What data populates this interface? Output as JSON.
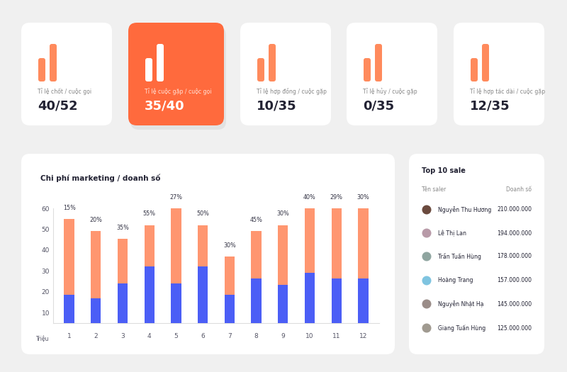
{
  "cards": [
    {
      "label": "Tỉ lệ chốt / cuộc gọi",
      "value": "40/52",
      "color": "#ffffff"
    },
    {
      "label": "Tỉ lệ cuộc gặp / cuộc gọi",
      "value": "35/40",
      "color": "#ff6a3d"
    },
    {
      "label": "Tỉ lệ hợp đồng / cuộc gặp",
      "value": "10/35",
      "color": "#ffffff"
    },
    {
      "label": "Tỉ lệ hủy / cuộc gặp",
      "value": "0/35",
      "color": "#ffffff"
    },
    {
      "label": "Tỉ lệ hợp tác dài / cuộc gặp",
      "value": "12/35",
      "color": "#ffffff"
    }
  ],
  "chart_data": {
    "type": "bar",
    "stacked": true,
    "title": "Chi phí marketing / doanh số",
    "y_label": "Triệu",
    "categories": [
      "1",
      "2",
      "3",
      "4",
      "5",
      "6",
      "7",
      "8",
      "9",
      "10",
      "11",
      "12"
    ],
    "series": [
      {
        "color": "#4b5ef6",
        "values": [
          18.5,
          17,
          24,
          32,
          24,
          32,
          18.5,
          26.5,
          23.5,
          29,
          26.5,
          26.5
        ]
      },
      {
        "color": "#ff9670",
        "values": [
          36.5,
          32,
          21.5,
          20,
          36,
          20,
          18.5,
          22.5,
          28.5,
          31,
          33.5,
          33.5
        ]
      }
    ],
    "annotations": [
      "15%",
      "20%",
      "35%",
      "55%",
      "27%",
      "50%",
      "30%",
      "45%",
      "30%",
      "40%",
      "29%",
      "30%"
    ],
    "ylim": [
      5,
      60
    ],
    "yticks": [
      10,
      20,
      30,
      40,
      50,
      60
    ],
    "grid": false
  },
  "top_sales": {
    "title": "Top 10 sale",
    "columns": [
      "Tên saler",
      "Doanh số"
    ],
    "rows": [
      [
        "Nguyễn Thu Hương",
        "210.000.000"
      ],
      [
        "Lê Thị Lan",
        "194.000.000"
      ],
      [
        "Trần Tuấn Hùng",
        "178.000.000"
      ],
      [
        "Hoàng Trang",
        "157.000.000"
      ],
      [
        "Nguyễn Nhật Hạ",
        "145.000.000"
      ],
      [
        "Giang Tuấn Hùng",
        "125.000.000"
      ]
    ]
  }
}
